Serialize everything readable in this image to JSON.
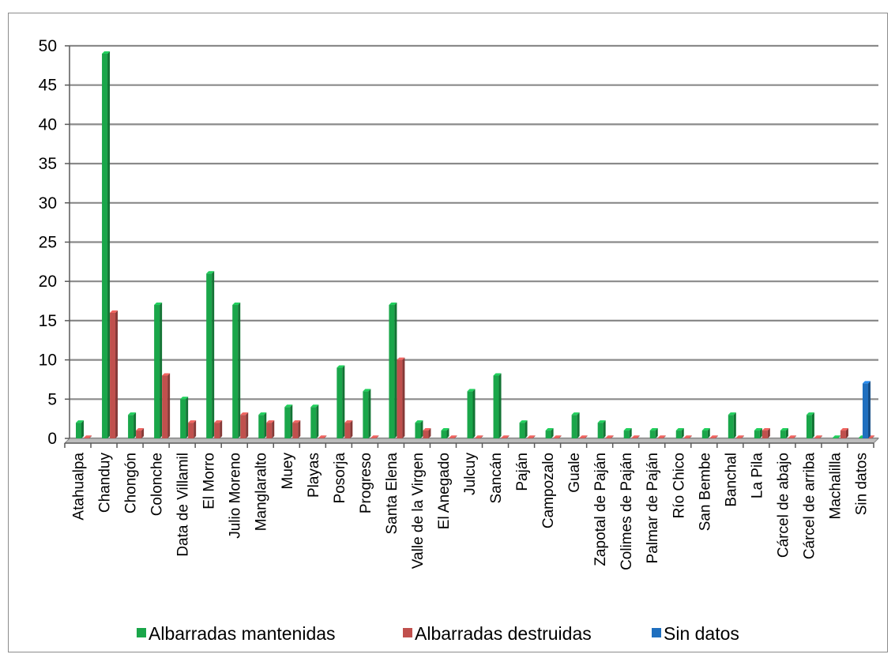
{
  "chart_data": {
    "type": "bar",
    "ylim": [
      0,
      50
    ],
    "yticks": [
      0,
      5,
      10,
      15,
      20,
      25,
      30,
      35,
      40,
      45,
      50
    ],
    "grid": true,
    "legend_position": "bottom",
    "categories": [
      "Atahualpa",
      "Chanduy",
      "Chongón",
      "Colonche",
      "Data de Villamil",
      "El Morro",
      "Julio Moreno",
      "Manglaralto",
      "Muey",
      "Playas",
      "Posorja",
      "Progreso",
      "Santa Elena",
      "Valle de la Virgen",
      "El Anegado",
      "Julcuy",
      "Sancán",
      "Paján",
      "Campozalo",
      "Guale",
      "Zapotal de Paján",
      "Colimes de Paján",
      "Palmar de Paján",
      "Río Chico",
      "San Bembe",
      "Banchal",
      "La Pila",
      "Cárcel de abajo",
      "Cárcel de arriba",
      "Machalilla",
      "Sin datos"
    ],
    "series": [
      {
        "name": "Albarradas mantenidas",
        "color": "#1aa64a",
        "values": [
          2,
          49,
          3,
          17,
          5,
          21,
          17,
          3,
          4,
          4,
          9,
          6,
          17,
          2,
          1,
          6,
          8,
          2,
          1,
          3,
          2,
          1,
          1,
          1,
          1,
          3,
          1,
          1,
          3,
          0,
          0
        ]
      },
      {
        "name": "Albarradas destruidas",
        "color": "#c0504d",
        "values": [
          0,
          16,
          1,
          8,
          2,
          2,
          3,
          2,
          2,
          0,
          2,
          0,
          10,
          1,
          0,
          0,
          0,
          0,
          0,
          0,
          0,
          0,
          0,
          0,
          0,
          0,
          1,
          0,
          0,
          1,
          0
        ]
      },
      {
        "name": "Sin datos",
        "color": "#1f6fbf",
        "values": [
          0,
          0,
          0,
          0,
          0,
          0,
          0,
          0,
          0,
          0,
          0,
          0,
          0,
          0,
          0,
          0,
          0,
          0,
          0,
          0,
          0,
          0,
          0,
          0,
          0,
          0,
          0,
          0,
          0,
          0,
          7
        ]
      }
    ]
  }
}
